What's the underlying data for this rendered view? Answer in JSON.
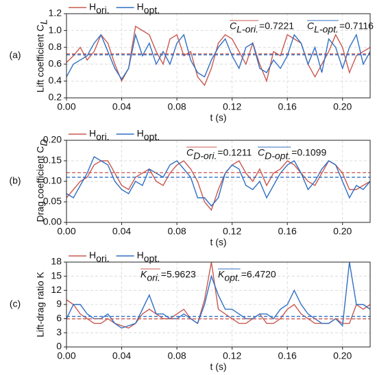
{
  "chart_data": [
    {
      "type": "line",
      "panel": "(a)",
      "ylabel": "Lift coefficient C",
      "ylabel_sub": "L",
      "xlabel": "t (s)",
      "x": [
        0,
        0.005,
        0.01,
        0.015,
        0.02,
        0.025,
        0.03,
        0.035,
        0.04,
        0.045,
        0.05,
        0.055,
        0.06,
        0.065,
        0.07,
        0.075,
        0.08,
        0.085,
        0.09,
        0.095,
        0.1,
        0.105,
        0.11,
        0.115,
        0.12,
        0.125,
        0.13,
        0.135,
        0.14,
        0.145,
        0.15,
        0.155,
        0.16,
        0.165,
        0.17,
        0.175,
        0.18,
        0.185,
        0.19,
        0.195,
        0.2,
        0.205,
        0.21,
        0.215,
        0.22
      ],
      "xlim": [
        0,
        0.22
      ],
      "xticks": [
        {
          "value": 0,
          "label": "0.00"
        },
        {
          "value": 0.04,
          "label": "0.04"
        },
        {
          "value": 0.08,
          "label": "0.08"
        },
        {
          "value": 0.12,
          "label": "0.12"
        },
        {
          "value": 0.16,
          "label": "0.16"
        },
        {
          "value": 0.2,
          "label": "0.20"
        }
      ],
      "ylim": [
        0.2,
        1.2
      ],
      "yticks": [
        0.2,
        0.4,
        0.6,
        0.8,
        {
          "value": 1.0,
          "label": "1.0"
        },
        1.2
      ],
      "grid": true,
      "series": [
        {
          "name": "H",
          "name_sub": "ori.",
          "color": "#c9584f",
          "values": [
            0.62,
            0.7,
            0.8,
            0.65,
            0.75,
            0.95,
            0.85,
            0.6,
            0.4,
            0.55,
            1.05,
            1.0,
            0.95,
            0.75,
            0.6,
            0.9,
            0.95,
            0.7,
            0.75,
            0.45,
            0.35,
            0.55,
            0.85,
            0.95,
            0.9,
            0.75,
            0.6,
            0.85,
            0.6,
            0.4,
            0.75,
            0.7,
            0.95,
            0.9,
            0.85,
            0.6,
            0.45,
            0.6,
            0.75,
            0.95,
            0.8,
            0.5,
            0.7,
            0.75,
            0.8
          ]
        },
        {
          "name": "H",
          "name_sub": "opt.",
          "color": "#2f6fc3",
          "values": [
            0.45,
            0.6,
            0.65,
            0.7,
            0.85,
            0.95,
            0.75,
            0.55,
            0.42,
            0.55,
            0.95,
            0.7,
            0.85,
            0.6,
            0.75,
            0.6,
            0.85,
            0.95,
            0.65,
            0.5,
            0.45,
            0.65,
            0.8,
            0.9,
            0.7,
            0.55,
            0.8,
            0.85,
            0.55,
            0.5,
            0.65,
            0.55,
            0.7,
            0.95,
            0.85,
            0.6,
            0.8,
            0.5,
            0.9,
            0.8,
            0.55,
            0.8,
            0.95,
            0.6,
            0.75
          ]
        }
      ],
      "means": [
        {
          "symbol": "C",
          "sub": "L-ori.",
          "text": "=0.7221",
          "value": 0.7221,
          "color": "#c9584f"
        },
        {
          "symbol": "C",
          "sub": "L-opt.",
          "text": "=0.7116",
          "value": 0.7116,
          "color": "#2f6fc3"
        }
      ]
    },
    {
      "type": "line",
      "panel": "(b)",
      "ylabel": "Drag coefficient C",
      "ylabel_sub": "D",
      "xlabel": "t (s)",
      "x": [
        0,
        0.005,
        0.01,
        0.015,
        0.02,
        0.025,
        0.03,
        0.035,
        0.04,
        0.045,
        0.05,
        0.055,
        0.06,
        0.065,
        0.07,
        0.075,
        0.08,
        0.085,
        0.09,
        0.095,
        0.1,
        0.105,
        0.11,
        0.115,
        0.12,
        0.125,
        0.13,
        0.135,
        0.14,
        0.145,
        0.15,
        0.155,
        0.16,
        0.165,
        0.17,
        0.175,
        0.18,
        0.185,
        0.19,
        0.195,
        0.2,
        0.205,
        0.21,
        0.215,
        0.22
      ],
      "xlim": [
        0,
        0.22
      ],
      "xticks": [
        {
          "value": 0,
          "label": "0.00"
        },
        {
          "value": 0.04,
          "label": "0.04"
        },
        {
          "value": 0.08,
          "label": "0.08"
        },
        {
          "value": 0.12,
          "label": "0.12"
        },
        {
          "value": 0.16,
          "label": "0.16"
        },
        {
          "value": 0.2,
          "label": "0.20"
        }
      ],
      "ylim": [
        0,
        0.2
      ],
      "yticks": [
        {
          "value": 0,
          "label": "0.00"
        },
        0.05,
        {
          "value": 0.1,
          "label": "0.10"
        },
        0.15,
        {
          "value": 0.2,
          "label": "0.20"
        }
      ],
      "grid": true,
      "series": [
        {
          "name": "H",
          "name_sub": "ori.",
          "color": "#c9584f",
          "values": [
            0.06,
            0.08,
            0.1,
            0.11,
            0.14,
            0.15,
            0.15,
            0.12,
            0.09,
            0.08,
            0.11,
            0.12,
            0.13,
            0.1,
            0.09,
            0.12,
            0.14,
            0.15,
            0.13,
            0.1,
            0.05,
            0.03,
            0.08,
            0.12,
            0.14,
            0.15,
            0.12,
            0.1,
            0.13,
            0.09,
            0.12,
            0.13,
            0.15,
            0.14,
            0.12,
            0.1,
            0.09,
            0.12,
            0.15,
            0.14,
            0.12,
            0.08,
            0.08,
            0.09,
            0.1
          ]
        },
        {
          "name": "H",
          "name_sub": "opt.",
          "color": "#2f6fc3",
          "values": [
            0.07,
            0.06,
            0.09,
            0.12,
            0.16,
            0.15,
            0.14,
            0.1,
            0.08,
            0.07,
            0.1,
            0.09,
            0.13,
            0.12,
            0.11,
            0.14,
            0.15,
            0.13,
            0.11,
            0.06,
            0.06,
            0.04,
            0.06,
            0.12,
            0.14,
            0.13,
            0.09,
            0.08,
            0.1,
            0.06,
            0.09,
            0.12,
            0.14,
            0.15,
            0.12,
            0.08,
            0.1,
            0.13,
            0.15,
            0.14,
            0.1,
            0.06,
            0.09,
            0.08,
            0.1
          ]
        }
      ],
      "means": [
        {
          "symbol": "C",
          "sub": "D-ori.",
          "text": "=0.1211",
          "value": 0.1211,
          "color": "#c9584f"
        },
        {
          "symbol": "C",
          "sub": "D-opt.",
          "text": "=0.1099",
          "value": 0.1099,
          "color": "#2f6fc3"
        }
      ]
    },
    {
      "type": "line",
      "panel": "(c)",
      "ylabel": "Lift-drag ratio K",
      "xlabel": "t (s)",
      "x": [
        0,
        0.005,
        0.01,
        0.015,
        0.02,
        0.025,
        0.03,
        0.035,
        0.04,
        0.045,
        0.05,
        0.055,
        0.06,
        0.065,
        0.07,
        0.075,
        0.08,
        0.085,
        0.09,
        0.095,
        0.1,
        0.105,
        0.11,
        0.115,
        0.12,
        0.125,
        0.13,
        0.135,
        0.14,
        0.145,
        0.15,
        0.155,
        0.16,
        0.165,
        0.17,
        0.175,
        0.18,
        0.185,
        0.19,
        0.195,
        0.2,
        0.205,
        0.21,
        0.215,
        0.22
      ],
      "xlim": [
        0,
        0.22
      ],
      "xticks": [
        {
          "value": 0,
          "label": "0.00"
        },
        {
          "value": 0.04,
          "label": "0.04"
        },
        {
          "value": 0.08,
          "label": "0.08"
        },
        {
          "value": 0.12,
          "label": "0.12"
        },
        {
          "value": 0.16,
          "label": "0.16"
        },
        {
          "value": 0.2,
          "label": "0.20"
        }
      ],
      "ylim": [
        0,
        18
      ],
      "yticks": [
        0,
        3,
        6,
        9,
        12,
        15,
        18
      ],
      "grid": true,
      "series": [
        {
          "name": "H",
          "name_sub": "ori.",
          "color": "#c9584f",
          "values": [
            10,
            9,
            7,
            6,
            5,
            5,
            6,
            5,
            4.5,
            4,
            5,
            7,
            8,
            7,
            6,
            6,
            7,
            8,
            6,
            5,
            10,
            18,
            8,
            7,
            6,
            5,
            5,
            6,
            7,
            5,
            5,
            6,
            8,
            9,
            7,
            6,
            5,
            5,
            5,
            6,
            5,
            5,
            9,
            8,
            9
          ]
        },
        {
          "name": "H",
          "name_sub": "opt.",
          "color": "#2f6fc3",
          "values": [
            6,
            9,
            9,
            7,
            6,
            6,
            7,
            5,
            4,
            4.5,
            5,
            8,
            11,
            7,
            7,
            6,
            6,
            7,
            6,
            5,
            9,
            15,
            11,
            8,
            8,
            7,
            6,
            6,
            7,
            7,
            6,
            8,
            9,
            12,
            9,
            7,
            6,
            5,
            5,
            6,
            4.5,
            18,
            9,
            9,
            8
          ]
        }
      ],
      "means": [
        {
          "symbol": "K",
          "sub": "ori.",
          "text": "=5.9623",
          "value": 5.9623,
          "color": "#c9584f"
        },
        {
          "symbol": "K",
          "sub": "opt.",
          "text": "=6.4720",
          "value": 6.472,
          "color": "#2f6fc3"
        }
      ]
    }
  ]
}
